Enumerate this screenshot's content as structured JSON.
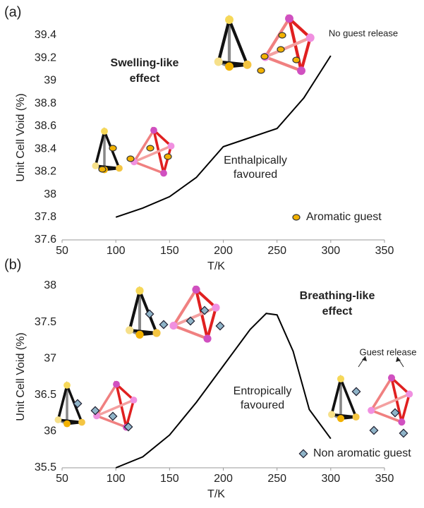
{
  "chart_data": [
    {
      "type": "line",
      "panel_label": "(a)",
      "x_label": "T/K",
      "y_label": "Unit Cell Void (%)",
      "xlim": [
        50,
        350
      ],
      "xticks": [
        50,
        100,
        150,
        200,
        250,
        300,
        350
      ],
      "ylim": [
        37.6,
        39.4
      ],
      "yticks": [
        37.6,
        37.8,
        38,
        38.2,
        38.4,
        38.6,
        38.8,
        39,
        39.2,
        39.4
      ],
      "series": [
        {
          "color": "#000000",
          "x": [
            100,
            125,
            150,
            175,
            200,
            225,
            250,
            275,
            300
          ],
          "values": [
            37.8,
            37.88,
            37.98,
            38.15,
            38.42,
            38.5,
            38.58,
            38.85,
            39.22
          ]
        }
      ],
      "effect_label": [
        "Swelling-like",
        "effect"
      ],
      "release_label": "No guest release",
      "curve_label": [
        "Enthalpically",
        "favoured"
      ],
      "legend_label": "Aromatic guest"
    },
    {
      "type": "line",
      "panel_label": "(b)",
      "x_label": "T/K",
      "y_label": "Unit Cell Void (%)",
      "xlim": [
        50,
        350
      ],
      "xticks": [
        50,
        100,
        150,
        200,
        250,
        300,
        350
      ],
      "ylim": [
        35.5,
        38
      ],
      "yticks": [
        35.5,
        36,
        36.5,
        37,
        37.5,
        38
      ],
      "series": [
        {
          "color": "#000000",
          "x": [
            100,
            125,
            150,
            175,
            200,
            225,
            240,
            250,
            265,
            280,
            300
          ],
          "values": [
            35.5,
            35.65,
            35.95,
            36.4,
            36.9,
            37.4,
            37.62,
            37.6,
            37.1,
            36.3,
            35.9
          ]
        }
      ],
      "effect_label": [
        "Breathing-like",
        "effect"
      ],
      "release_label": "Guest release",
      "curve_label": [
        "Entropically",
        "favoured"
      ],
      "legend_label": "Non aromatic guest"
    }
  ]
}
